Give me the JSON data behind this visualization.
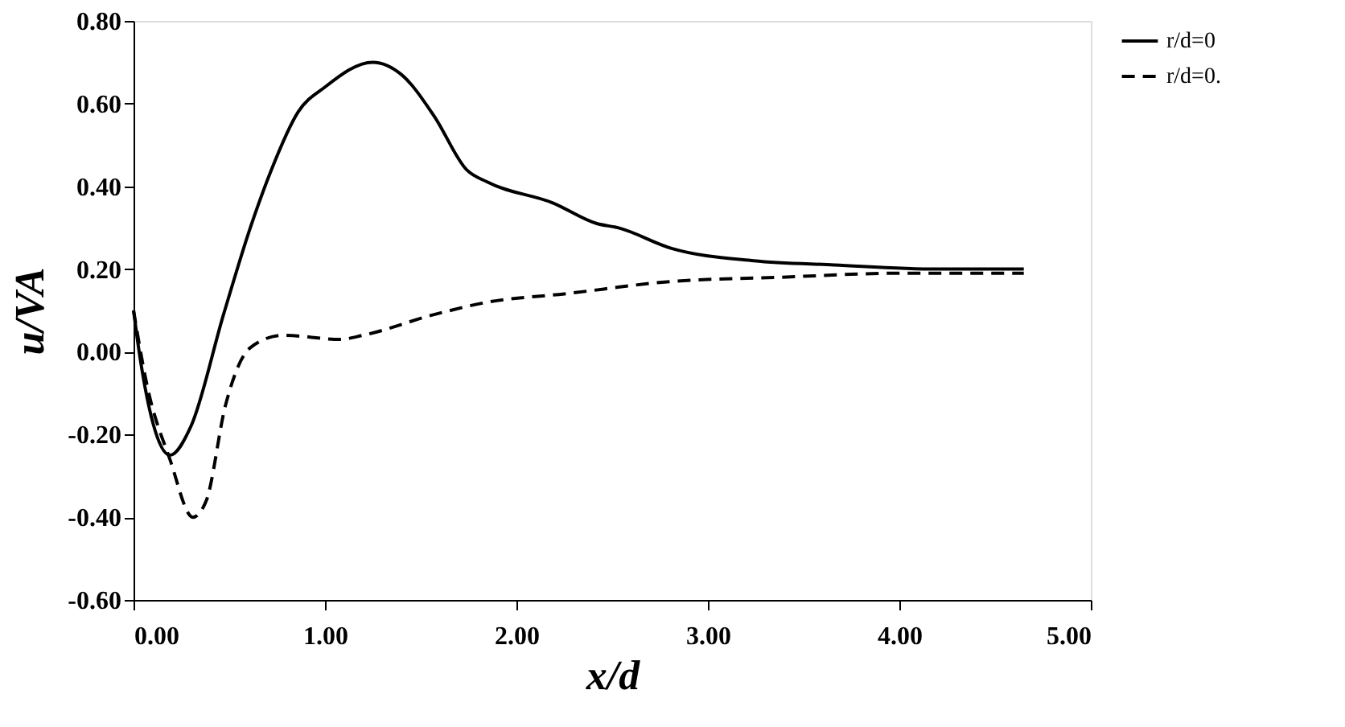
{
  "chart_data": {
    "type": "line",
    "xlabel": "x/d",
    "ylabel": "u/VA",
    "xlim": [
      0,
      5
    ],
    "xticks": [
      {
        "value": 0,
        "label": "0.00"
      },
      {
        "value": 1,
        "label": "1.00"
      },
      {
        "value": 2,
        "label": "2.00"
      },
      {
        "value": 3,
        "label": "3.00"
      },
      {
        "value": 4,
        "label": "4.00"
      },
      {
        "value": 5,
        "label": "5.00"
      }
    ],
    "ylim": [
      -0.6,
      0.8
    ],
    "yticks": [
      {
        "value": -0.6,
        "label": "-0.60"
      },
      {
        "value": -0.4,
        "label": "-0.40"
      },
      {
        "value": -0.2,
        "label": "-0.20"
      },
      {
        "value": 0,
        "label": "0.00"
      },
      {
        "value": 0.2,
        "label": "0.20"
      },
      {
        "value": 0.4,
        "label": "0.40"
      },
      {
        "value": 0.6,
        "label": "0.60"
      },
      {
        "value": 0.8,
        "label": "0.80"
      }
    ],
    "grid": false,
    "legend": "right",
    "marker": "none",
    "series": [
      {
        "name": "r/d=0",
        "color": "#000000",
        "line_style": "solid",
        "x": [
          0,
          0.02,
          0.1,
          0.19,
          0.3,
          0.47,
          0.61,
          0.72,
          0.86,
          1.0,
          1.25,
          1.4,
          1.57,
          1.74,
          1.85,
          2.19,
          2.42,
          2.53,
          2.81,
          3.24,
          3.66,
          4.2,
          4.65
        ],
        "values": [
          0.1,
          0.03,
          -0.17,
          -0.25,
          -0.18,
          0.09,
          0.3,
          0.44,
          0.58,
          0.64,
          0.7,
          0.67,
          0.57,
          0.44,
          0.41,
          0.36,
          0.31,
          0.3,
          0.25,
          0.22,
          0.21,
          0.2,
          0.2
        ]
      },
      {
        "name": "r/d=0.",
        "color": "#000000",
        "line_style": "dashed",
        "x": [
          0,
          0.07,
          0.19,
          0.31,
          0.38,
          0.48,
          0.61,
          0.78,
          1.08,
          1.2,
          1.57,
          1.85,
          2.25,
          2.81,
          3.37,
          4.0,
          4.65
        ],
        "values": [
          0.1,
          -0.08,
          -0.26,
          -0.4,
          -0.36,
          -0.13,
          0.01,
          0.04,
          0.03,
          0.04,
          0.09,
          0.12,
          0.14,
          0.17,
          0.18,
          0.19,
          0.19
        ]
      }
    ]
  }
}
